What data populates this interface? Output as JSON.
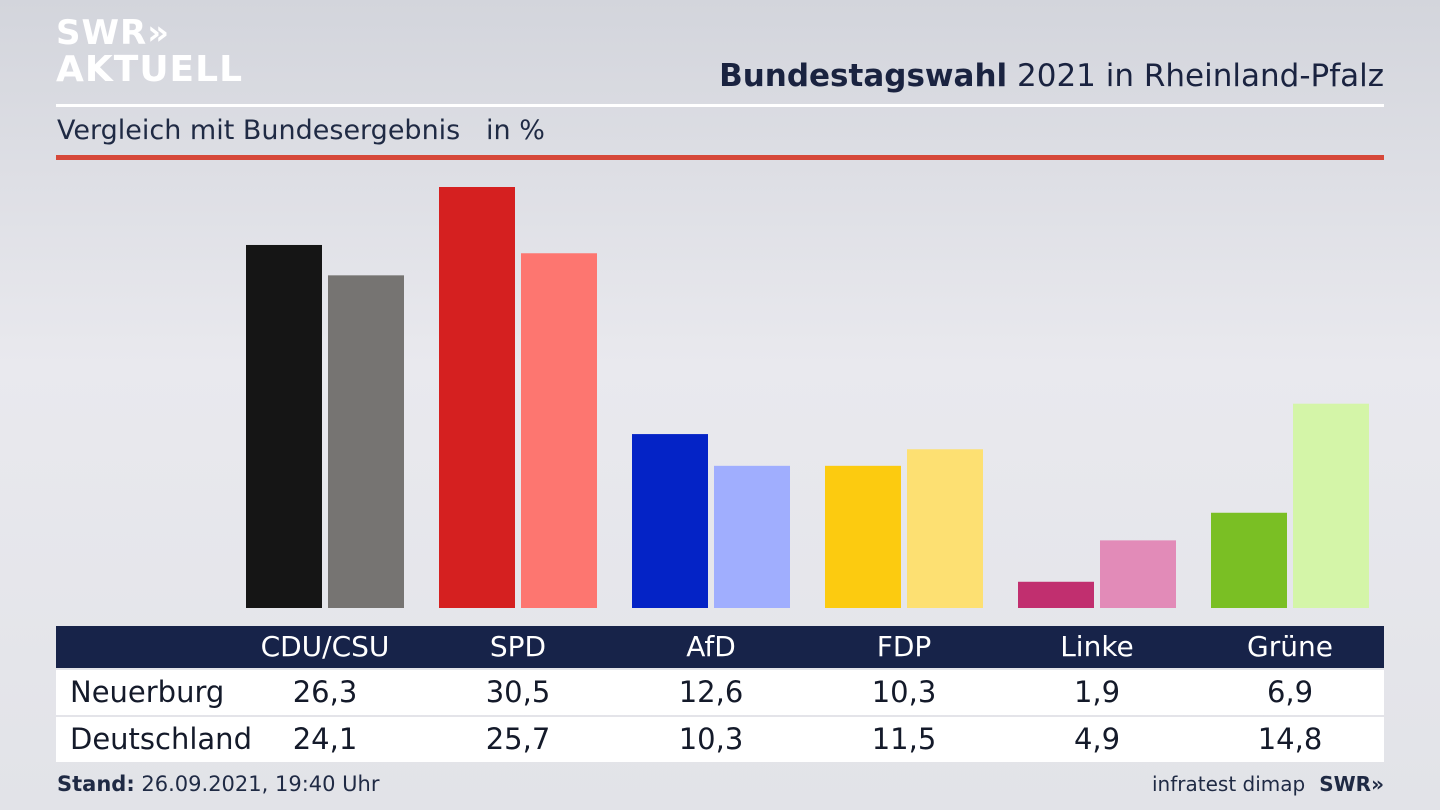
{
  "brand": {
    "logo_line1": "SWR»",
    "logo_line2": "AKTUELL",
    "footer_logo": "SWR»"
  },
  "header": {
    "title_bold": "Bundestagswahl",
    "title_rest": " 2021 in Rheinland-Pfalz",
    "subtitle": "Vergleich mit Bundesergebnis   in %"
  },
  "footer": {
    "stand_label": "Stand:",
    "stand_value": " 26.09.2021, 19:40 Uhr",
    "source": "infratest dimap"
  },
  "colors": {
    "header_bar": "#172349",
    "accent_rule": "#d6483a",
    "Neuerburg": [
      "#151515",
      "#d52020",
      "#0423c6",
      "#fccb10",
      "#c12f6f",
      "#7abf24"
    ],
    "Deutschland": [
      "#767472",
      "#fd7670",
      "#a0aefe",
      "#fde072",
      "#e28bb8",
      "#d4f5a8"
    ]
  },
  "chart_data": {
    "type": "bar",
    "categories": [
      "CDU/CSU",
      "SPD",
      "AfD",
      "FDP",
      "Linke",
      "Grüne"
    ],
    "series": [
      {
        "name": "Neuerburg",
        "values": [
          26.3,
          30.5,
          12.6,
          10.3,
          1.9,
          6.9
        ],
        "labels": [
          "26,3",
          "30,5",
          "12,6",
          "10,3",
          "1,9",
          "6,9"
        ]
      },
      {
        "name": "Deutschland",
        "values": [
          24.1,
          25.7,
          10.3,
          11.5,
          4.9,
          14.8
        ],
        "labels": [
          "24,1",
          "25,7",
          "10,3",
          "11,5",
          "4,9",
          "14,8"
        ]
      }
    ],
    "ylim": [
      0,
      30.5
    ],
    "grid": false,
    "legend": "table-below"
  }
}
